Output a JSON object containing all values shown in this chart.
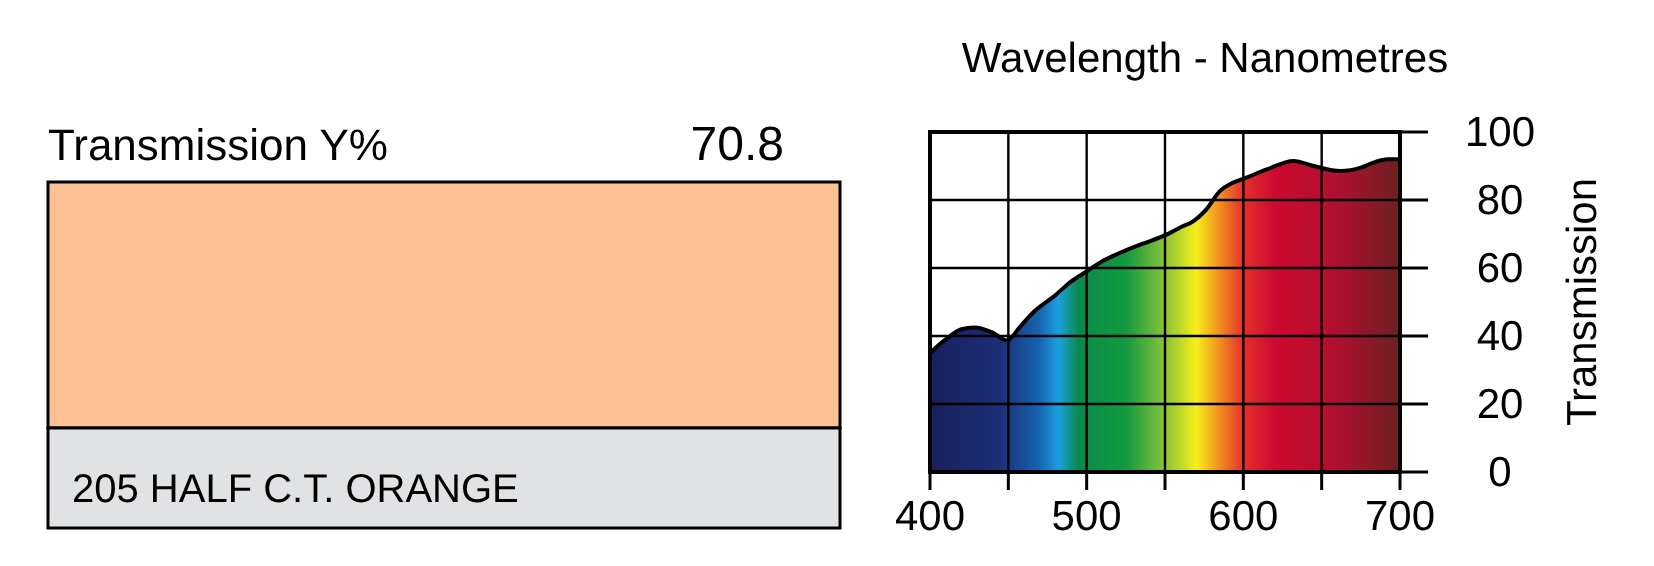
{
  "chart_data": [
    {
      "type": "other",
      "title": "Transmission Y%",
      "annotations": [
        "70.8",
        "205 HALF C.T. ORANGE"
      ]
    },
    {
      "type": "area",
      "title": "Wavelength - Nanometres",
      "ylabel": "Transmission",
      "x": [
        400,
        410,
        420,
        428,
        440,
        449,
        458,
        466,
        480,
        490,
        500,
        510,
        521,
        535,
        551,
        560,
        568,
        576,
        585,
        593,
        602,
        615,
        632,
        645,
        662,
        675,
        683,
        692,
        700
      ],
      "series": [
        {
          "color": "#000000",
          "values": [
            35,
            39,
            42,
            42.5,
            41,
            38.7,
            43,
            47,
            52,
            56,
            59,
            62,
            64.4,
            67,
            69.8,
            72,
            73.7,
            77,
            82.6,
            85,
            86.6,
            89,
            91.5,
            90,
            88.5,
            89.5,
            91,
            92,
            92
          ]
        }
      ],
      "xlim": [
        400,
        700
      ],
      "xticks": [
        400,
        500,
        600,
        700
      ],
      "ylim": [
        0,
        100
      ],
      "yticks": [
        0,
        20,
        40,
        60,
        80,
        100
      ],
      "grid": true,
      "line_style": "solid"
    }
  ]
}
